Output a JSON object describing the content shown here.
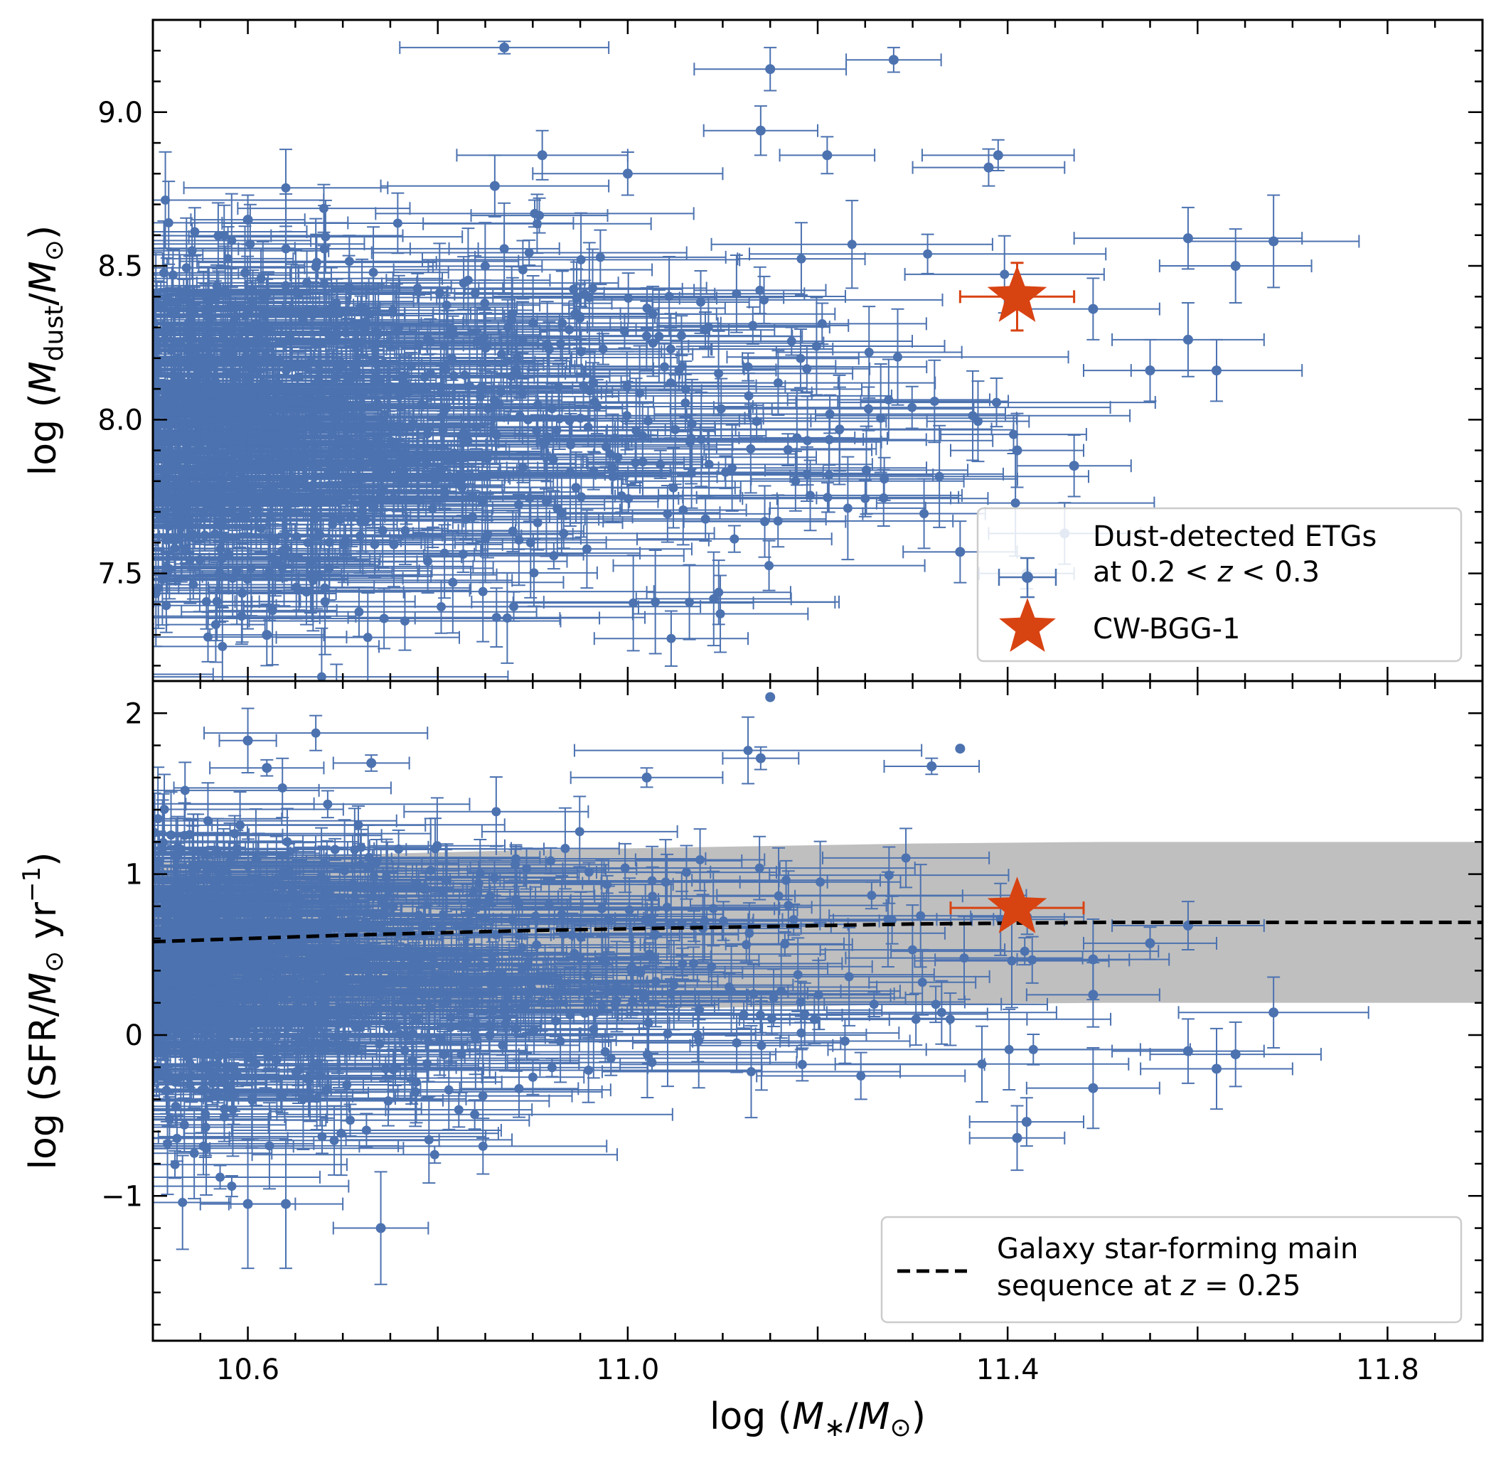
{
  "colors": {
    "points": "#4C72B0",
    "highlight": "#D84312",
    "band": "#BFBFBF",
    "main_sequence": "#000000"
  },
  "chart_data": [
    {
      "type": "scatter",
      "panel": "top",
      "xlabel": "log (M*/M⊙)",
      "ylabel": "log (Mdust/M⊙)",
      "xlim": [
        10.5,
        11.9
      ],
      "ylim": [
        7.15,
        9.3
      ],
      "yticks": [
        {
          "value": 7.5,
          "label": "7.5"
        },
        {
          "value": 8.0,
          "label": "8.0"
        },
        {
          "value": 8.5,
          "label": "8.5"
        },
        {
          "value": 9.0,
          "label": "9.0"
        }
      ],
      "xticks": [
        10.6,
        11.0,
        11.4,
        11.8
      ],
      "series": [
        {
          "name": "Dust-detected ETGs at 0.2 < z < 0.3",
          "marker": "circle",
          "points": [
            {
              "x": 10.87,
              "y": 9.21,
              "xerr": 0.11,
              "yerr": 0.02
            },
            {
              "x": 11.15,
              "y": 9.14,
              "xerr": 0.08,
              "yerr": 0.07
            },
            {
              "x": 11.28,
              "y": 9.17,
              "xerr": 0.05,
              "yerr": 0.04
            },
            {
              "x": 11.14,
              "y": 8.94,
              "xerr": 0.06,
              "yerr": 0.08
            },
            {
              "x": 11.39,
              "y": 8.86,
              "xerr": 0.08,
              "yerr": 0.05
            },
            {
              "x": 11.38,
              "y": 8.82,
              "xerr": 0.08,
              "yerr": 0.06
            },
            {
              "x": 10.91,
              "y": 8.86,
              "xerr": 0.09,
              "yerr": 0.08
            },
            {
              "x": 11.21,
              "y": 8.86,
              "xerr": 0.05,
              "yerr": 0.06
            },
            {
              "x": 10.86,
              "y": 8.76,
              "xerr": 0.12,
              "yerr": 0.1
            },
            {
              "x": 11.0,
              "y": 8.8,
              "xerr": 0.1,
              "yerr": 0.07
            },
            {
              "x": 11.59,
              "y": 8.59,
              "xerr": 0.12,
              "yerr": 0.1
            },
            {
              "x": 11.68,
              "y": 8.58,
              "xerr": 0.09,
              "yerr": 0.15
            },
            {
              "x": 11.64,
              "y": 8.5,
              "xerr": 0.08,
              "yerr": 0.12
            },
            {
              "x": 11.49,
              "y": 8.36,
              "xerr": 0.07,
              "yerr": 0.1
            },
            {
              "x": 11.59,
              "y": 8.26,
              "xerr": 0.08,
              "yerr": 0.12
            },
            {
              "x": 11.62,
              "y": 8.16,
              "xerr": 0.09,
              "yerr": 0.1
            },
            {
              "x": 11.55,
              "y": 8.16,
              "xerr": 0.07,
              "yerr": 0.1
            },
            {
              "x": 11.47,
              "y": 7.85,
              "xerr": 0.06,
              "yerr": 0.1
            },
            {
              "x": 11.46,
              "y": 7.63,
              "xerr": 0.08,
              "yerr": 0.1
            },
            {
              "x": 11.41,
              "y": 7.9,
              "xerr": 0.07,
              "yerr": 0.12
            },
            {
              "x": 11.35,
              "y": 7.57,
              "xerr": 0.06,
              "yerr": 0.1
            },
            {
              "x": 11.42,
              "y": 7.5,
              "xerr": 0.05,
              "yerr": 0.05
            },
            {
              "x": 10.6,
              "y": 8.65,
              "xerr": 0.06,
              "yerr": 0.08
            },
            {
              "x": 10.62,
              "y": 7.3,
              "xerr": 0.06,
              "yerr": 0.1
            }
          ]
        },
        {
          "name": "CW-BGG-1",
          "marker": "star",
          "points": [
            {
              "x": 11.41,
              "y": 8.4,
              "xerr": 0.06,
              "yerr": 0.11
            }
          ]
        }
      ],
      "legend": {
        "position": "bottom-right",
        "entries": [
          "Dust-detected ETGs",
          "at 0.2 < z < 0.3",
          "CW-BGG-1"
        ]
      }
    },
    {
      "type": "scatter",
      "panel": "bottom",
      "xlabel": "log (M*/M⊙)",
      "ylabel": "log (SFR/M⊙ yr⁻¹)",
      "xlim": [
        10.5,
        11.9
      ],
      "ylim": [
        -1.9,
        2.2
      ],
      "yticks": [
        {
          "value": -1,
          "label": "−1"
        },
        {
          "value": 0,
          "label": "0"
        },
        {
          "value": 1,
          "label": "1"
        },
        {
          "value": 2,
          "label": "2"
        }
      ],
      "xticks": [
        {
          "value": 10.6,
          "label": "10.6"
        },
        {
          "value": 11.0,
          "label": "11.0"
        },
        {
          "value": 11.4,
          "label": "11.4"
        },
        {
          "value": 11.8,
          "label": "11.8"
        }
      ],
      "main_sequence": {
        "name": "Galaxy star-forming main sequence at z = 0.25",
        "x": [
          10.5,
          10.7,
          10.9,
          11.1,
          11.3,
          11.5,
          11.7,
          11.9
        ],
        "y": [
          0.58,
          0.62,
          0.65,
          0.67,
          0.69,
          0.7,
          0.7,
          0.7
        ],
        "band_low": [
          0.08,
          0.12,
          0.15,
          0.17,
          0.19,
          0.2,
          0.2,
          0.2
        ],
        "band_high": [
          1.08,
          1.12,
          1.15,
          1.17,
          1.19,
          1.2,
          1.2,
          1.2
        ]
      },
      "series": [
        {
          "name": "Dust-detected ETGs at 0.2 < z < 0.3",
          "marker": "circle",
          "points": [
            {
              "x": 11.15,
              "y": 2.1,
              "xerr": 0.0,
              "yerr": 0.0
            },
            {
              "x": 10.6,
              "y": 1.83,
              "xerr": 0.03,
              "yerr": 0.2
            },
            {
              "x": 11.35,
              "y": 1.78,
              "xerr": 0.0,
              "yerr": 0.0
            },
            {
              "x": 11.14,
              "y": 1.72,
              "xerr": 0.04,
              "yerr": 0.07
            },
            {
              "x": 11.32,
              "y": 1.67,
              "xerr": 0.05,
              "yerr": 0.05
            },
            {
              "x": 10.62,
              "y": 1.66,
              "xerr": 0.06,
              "yerr": 0.05
            },
            {
              "x": 10.73,
              "y": 1.69,
              "xerr": 0.04,
              "yerr": 0.05
            },
            {
              "x": 11.02,
              "y": 1.6,
              "xerr": 0.08,
              "yerr": 0.06
            },
            {
              "x": 11.59,
              "y": 0.68,
              "xerr": 0.08,
              "yerr": 0.15
            },
            {
              "x": 11.55,
              "y": 0.57,
              "xerr": 0.07,
              "yerr": 0.1
            },
            {
              "x": 11.49,
              "y": 0.47,
              "xerr": 0.08,
              "yerr": 0.25
            },
            {
              "x": 11.49,
              "y": 0.25,
              "xerr": 0.07,
              "yerr": 0.2
            },
            {
              "x": 11.68,
              "y": 0.14,
              "xerr": 0.1,
              "yerr": 0.22
            },
            {
              "x": 11.59,
              "y": -0.1,
              "xerr": 0.08,
              "yerr": 0.2
            },
            {
              "x": 11.64,
              "y": -0.12,
              "xerr": 0.09,
              "yerr": 0.2
            },
            {
              "x": 11.62,
              "y": -0.21,
              "xerr": 0.08,
              "yerr": 0.25
            },
            {
              "x": 11.49,
              "y": -0.33,
              "xerr": 0.07,
              "yerr": 0.25
            },
            {
              "x": 11.42,
              "y": -0.54,
              "xerr": 0.06,
              "yerr": 0.15
            },
            {
              "x": 11.41,
              "y": -0.64,
              "xerr": 0.05,
              "yerr": 0.2
            },
            {
              "x": 10.6,
              "y": -1.05,
              "xerr": 0.05,
              "yerr": 0.4
            },
            {
              "x": 10.64,
              "y": -1.05,
              "xerr": 0.06,
              "yerr": 0.4
            },
            {
              "x": 10.74,
              "y": -1.2,
              "xerr": 0.05,
              "yerr": 0.35
            }
          ]
        },
        {
          "name": "CW-BGG-1",
          "marker": "star",
          "points": [
            {
              "x": 11.41,
              "y": 0.79,
              "xerr": 0.07,
              "yerr": 0.0
            }
          ]
        }
      ],
      "legend": {
        "position": "bottom-right",
        "entries": [
          "Galaxy star-forming main",
          "sequence at z = 0.25"
        ]
      }
    }
  ],
  "legend_top": {
    "line1": "Dust-detected ETGs",
    "line2_prefix": "at 0.2 < ",
    "line2_var": "z",
    "line2_suffix": " < 0.3",
    "line3": "CW-BGG-1"
  },
  "legend_bottom": {
    "line1": "Galaxy star-forming main",
    "line2_prefix": "sequence at ",
    "line2_var": "z",
    "line2_suffix": " = 0.25"
  },
  "labels": {
    "x_prefix": "log (",
    "x_m": "M",
    "x_star": "∗",
    "x_slash": "/",
    "x_m2": "M",
    "x_sun": "⊙",
    "x_close": ")",
    "y_top_prefix": "log (",
    "y_top_m": "M",
    "y_top_sub": "dust",
    "y_top_slash": "/",
    "y_top_m2": "M",
    "y_top_sun": "⊙",
    "y_top_close": ")",
    "y_bot_prefix": "log (SFR/",
    "y_bot_m": "M",
    "y_bot_sun": "⊙",
    "y_bot_mid": " yr",
    "y_bot_sup": "−1",
    "y_bot_close": ")"
  }
}
